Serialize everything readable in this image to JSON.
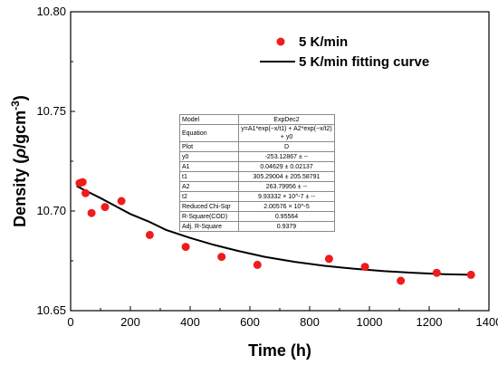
{
  "chart_data": {
    "type": "scatter",
    "xlabel": "Time (h)",
    "ylabel_parts": {
      "pre": "Density (",
      "rho": "ρ",
      "mid": "/gcm",
      "sup": "-3",
      "post": ")"
    },
    "xlim": [
      0,
      1400
    ],
    "ylim": [
      10.65,
      10.8
    ],
    "xticks": [
      0,
      200,
      400,
      600,
      800,
      1000,
      1200,
      1400
    ],
    "xtick_labels": [
      "0",
      "200",
      "400",
      "600",
      "800",
      "1000",
      "1200",
      "1400"
    ],
    "yticks": [
      10.65,
      10.7,
      10.75,
      10.8
    ],
    "ytick_labels": [
      "10.65",
      "10.70",
      "10.75",
      "10.80"
    ],
    "legend": {
      "placement": "top-right",
      "points_label": "5 K/min",
      "curve_label": "5 K/min fitting curve"
    },
    "colors": {
      "points": "#ee1c1c",
      "curve": "#000000"
    },
    "series": [
      {
        "name": "5 K/min",
        "kind": "points",
        "x": [
          30,
          40,
          50,
          70,
          115,
          170,
          265,
          385,
          505,
          625,
          865,
          985,
          1105,
          1225,
          1340
        ],
        "y": [
          10.714,
          10.7145,
          10.709,
          10.699,
          10.702,
          10.705,
          10.688,
          10.682,
          10.677,
          10.673,
          10.676,
          10.672,
          10.665,
          10.669,
          10.668
        ]
      },
      {
        "name": "5 K/min fitting curve",
        "kind": "line",
        "x": [
          20,
          60,
          100,
          150,
          200,
          260,
          320,
          400,
          480,
          560,
          650,
          750,
          850,
          950,
          1050,
          1150,
          1250,
          1340
        ],
        "y": [
          10.7125,
          10.7095,
          10.7065,
          10.7025,
          10.6985,
          10.6948,
          10.6905,
          10.6865,
          10.683,
          10.68,
          10.677,
          10.6745,
          10.6725,
          10.671,
          10.6698,
          10.669,
          10.6683,
          10.668
        ]
      }
    ]
  },
  "fit_table": {
    "rows": [
      {
        "key": "Model",
        "value": "ExpDec2"
      },
      {
        "key": "Equation",
        "value": "y=A1*exp(−x/t1) + A2*exp(−x/t2) + y0"
      },
      {
        "key": "Plot",
        "value": "D"
      },
      {
        "key": "y0",
        "value": "-253.12867 ± --"
      },
      {
        "key": "A1",
        "value": "0.04629 ± 0.02137"
      },
      {
        "key": "t1",
        "value": "305.29004 ± 205.58791"
      },
      {
        "key": "A2",
        "value": "263.79956 ± --"
      },
      {
        "key": "t2",
        "value": "9.93332 × 10^-7 ± --"
      },
      {
        "key": "Reduced Chi-Sqr",
        "value": "2.00576 × 10^-5"
      },
      {
        "key": "R-Square(COD)",
        "value": "0.95564"
      },
      {
        "key": "Adj. R-Square",
        "value": "0.9379"
      }
    ]
  }
}
